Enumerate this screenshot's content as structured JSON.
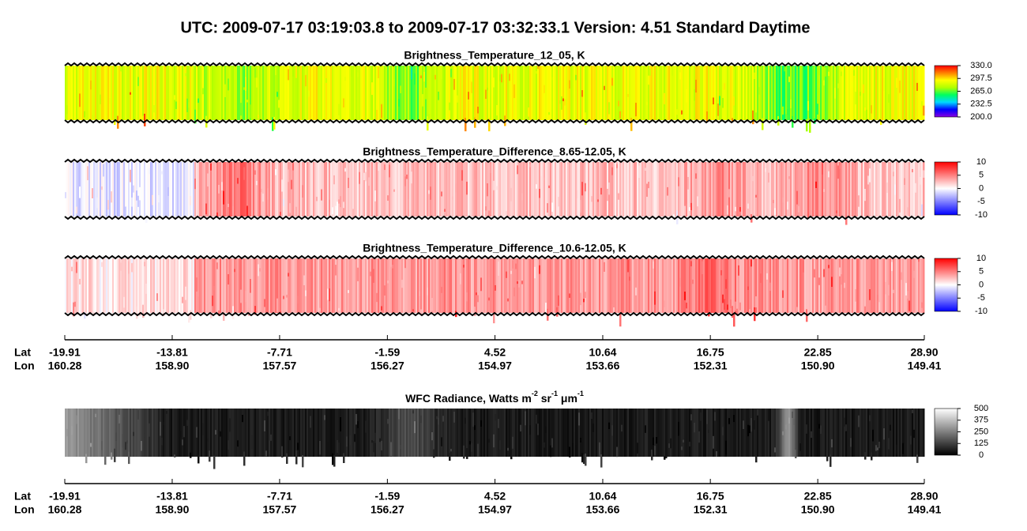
{
  "title": "UTC:  2009-07-17   03:19:03.8  to  2009-07-17   03:32:33.1    Version: 4.51  Standard Daytime",
  "chart_data": [
    {
      "type": "heatmap",
      "title": "Brightness_Temperature_12_05, K",
      "colormap": [
        "#8a00e0",
        "#0000ff",
        "#00d8ff",
        "#00ff60",
        "#b0ff00",
        "#ffff00",
        "#ff8000",
        "#ff0000"
      ],
      "clim": [
        200,
        330
      ],
      "cticks": [
        {
          "value": 200,
          "label": "200.0"
        },
        {
          "value": 232.5,
          "label": "232.5"
        },
        {
          "value": 265,
          "label": "265.0"
        },
        {
          "value": 297.5,
          "label": "297.5"
        },
        {
          "value": 330,
          "label": "330.0"
        }
      ]
    },
    {
      "type": "heatmap",
      "title": "Brightness_Temperature_Difference_8.65-12.05, K",
      "colormap": [
        "#0000ff",
        "#ffffff",
        "#ff0000"
      ],
      "clim": [
        -10,
        10
      ],
      "cticks": [
        -10,
        -5,
        0,
        5,
        10
      ]
    },
    {
      "type": "heatmap",
      "title": "Brightness_Temperature_Difference_10.6-12.05, K",
      "colormap": [
        "#0000ff",
        "#ffffff",
        "#ff0000"
      ],
      "clim": [
        -10,
        10
      ],
      "cticks": [
        -10,
        -5,
        0,
        5,
        10
      ]
    },
    {
      "type": "heatmap",
      "title_parts": [
        "WFC Radiance, Watts m",
        "-2",
        " sr",
        "-1",
        " μm",
        "-1"
      ],
      "colormap": [
        "#000000",
        "#ffffff"
      ],
      "clim": [
        0,
        500
      ],
      "cticks": [
        0,
        125,
        250,
        375,
        500
      ]
    }
  ],
  "axis": {
    "lat_label": "Lat",
    "lon_label": "Lon",
    "xlim": [
      -19.91,
      28.9
    ],
    "lat": [
      -19.91,
      -13.81,
      -7.71,
      -1.59,
      4.52,
      10.64,
      16.75,
      22.85,
      {
        "value": 28.9,
        "label": "28.90"
      }
    ],
    "lon": [
      160.28,
      {
        "value": 158.9,
        "label": "158.90"
      },
      157.57,
      156.27,
      154.97,
      153.66,
      152.31,
      {
        "value": 150.9,
        "label": "150.90"
      },
      149.41
    ]
  }
}
